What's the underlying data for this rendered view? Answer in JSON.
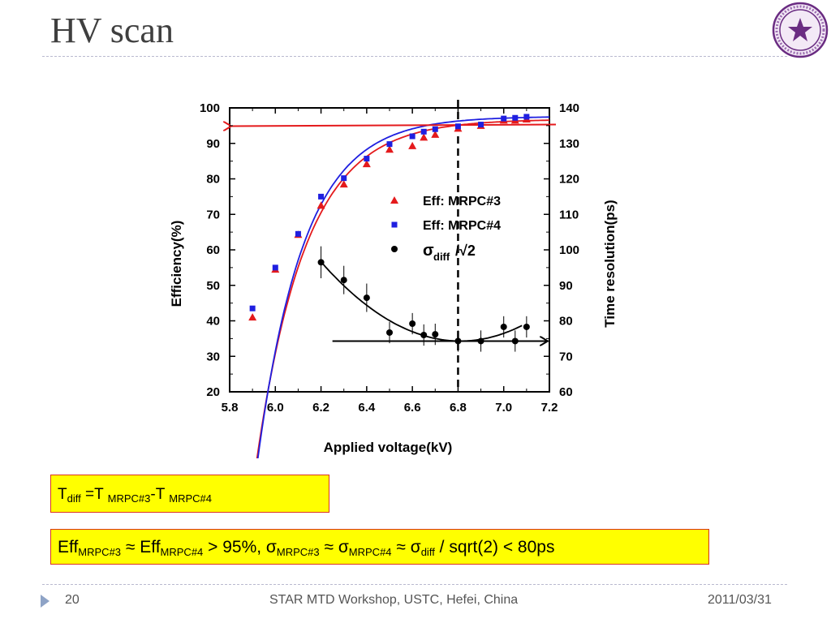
{
  "slide": {
    "title": "HV scan",
    "page_number": "20",
    "footer_event": "STAR MTD Workshop, USTC, Hefei, China",
    "footer_date": "2011/03/31",
    "logo_icon": "university-seal-icon"
  },
  "equation1": {
    "t": "T",
    "t_sub": "diff",
    "eq": " =T ",
    "a_sub": "MRPC#3",
    "minus": "-T ",
    "b_sub": "MRPC#4"
  },
  "equation2": {
    "eff1": "Eff",
    "eff1_sub": "MRPC#3",
    "approx1": " ≈ Eff",
    "eff2_sub": "MRPC#4",
    "gt": " > 95%, σ",
    "s1_sub": "MRPC#3",
    "approx2": "  ≈ σ",
    "s2_sub": "MRPC#4",
    "approx3": "  ≈ σ",
    "s3_sub": "diff",
    "tail": "  / sqrt(2) < 80ps"
  },
  "colors": {
    "red": "#e41a1c",
    "blue": "#1f1fe0",
    "black": "#000000",
    "highlight": "#ffff00",
    "box_border": "#d9341e"
  },
  "chart_data": {
    "type": "scatter",
    "xlabel": "Applied voltage(kV)",
    "ylabel_left": "Efficiency(%)",
    "ylabel_right": "Time resolution(ps)",
    "xlim": [
      5.8,
      7.2
    ],
    "ylim_left": [
      20,
      100
    ],
    "ylim_right": [
      60,
      140
    ],
    "x_ticks": [
      "5.8",
      "6.0",
      "6.2",
      "6.4",
      "6.6",
      "6.8",
      "7.0",
      "7.2"
    ],
    "y_left_ticks": [
      "20",
      "30",
      "40",
      "50",
      "60",
      "70",
      "80",
      "90",
      "100"
    ],
    "y_right_ticks": [
      "60",
      "70",
      "80",
      "90",
      "100",
      "110",
      "120",
      "130",
      "140"
    ],
    "legend": {
      "position": "center-right",
      "entries": [
        {
          "label": "Eff: MRPC#3",
          "marker": "triangle",
          "color": "#e41a1c"
        },
        {
          "label": "Eff: MRPC#4",
          "marker": "square",
          "color": "#1f1fe0"
        },
        {
          "label_main": "σ",
          "label_sub": "diff",
          "label_tail": "/√2",
          "marker": "circle",
          "color": "#000000"
        }
      ]
    },
    "series": [
      {
        "axis": "left",
        "marker": "triangle",
        "color": "#e41a1c",
        "x": [
          5.9,
          6.0,
          6.1,
          6.2,
          6.3,
          6.4,
          6.5,
          6.6,
          6.65,
          6.7,
          6.8,
          6.9,
          7.0,
          7.05,
          7.1
        ],
        "y": [
          41.0,
          54.5,
          64.3,
          72.5,
          78.5,
          84.2,
          88.3,
          89.3,
          91.7,
          92.5,
          94.2,
          95.0,
          96.5,
          96.5,
          96.8
        ]
      },
      {
        "axis": "left",
        "marker": "square",
        "color": "#1f1fe0",
        "x": [
          5.9,
          6.0,
          6.1,
          6.2,
          6.3,
          6.4,
          6.5,
          6.6,
          6.65,
          6.7,
          6.8,
          6.9,
          7.0,
          7.05,
          7.1
        ],
        "y": [
          43.5,
          55.0,
          64.5,
          75.0,
          80.2,
          85.7,
          89.8,
          92.0,
          93.3,
          94.0,
          94.8,
          95.3,
          97.0,
          97.2,
          97.5
        ]
      },
      {
        "axis": "right",
        "marker": "circle",
        "color": "#000000",
        "x": [
          6.2,
          6.3,
          6.4,
          6.5,
          6.6,
          6.65,
          6.7,
          6.8,
          6.9,
          7.0,
          7.05,
          7.1
        ],
        "y": [
          96.5,
          91.5,
          86.5,
          76.7,
          79.2,
          76.0,
          76.2,
          74.3,
          74.3,
          78.3,
          74.3,
          78.3
        ],
        "err": [
          4.5,
          4.0,
          4.0,
          3.0,
          3.0,
          3.0,
          3.0,
          3.0,
          3.0,
          3.0,
          3.0,
          3.0
        ]
      }
    ],
    "fits": [
      {
        "axis": "left",
        "color": "#e41a1c",
        "form": "plateau",
        "A": 96.8,
        "B": 165.6,
        "k": 4.6
      },
      {
        "axis": "left",
        "color": "#1f1fe0",
        "form": "plateau",
        "A": 97.6,
        "B": 176.3,
        "k": 4.9
      },
      {
        "axis": "right",
        "color": "#000000",
        "form": "parabola",
        "x0": 6.81,
        "y0": 74.3,
        "a": 60,
        "xmin": 6.2,
        "xmax": 7.08
      }
    ],
    "annotations": {
      "vertical_dashed_x": 6.8,
      "red_arrow": {
        "axis": "left",
        "y": 95.2,
        "x_from": 7.2,
        "x_to": 5.8,
        "direction": "left"
      },
      "black_arrow": {
        "axis": "right",
        "y": 74.3,
        "x_from": 6.25,
        "x_to": 7.2,
        "direction": "right"
      }
    }
  }
}
